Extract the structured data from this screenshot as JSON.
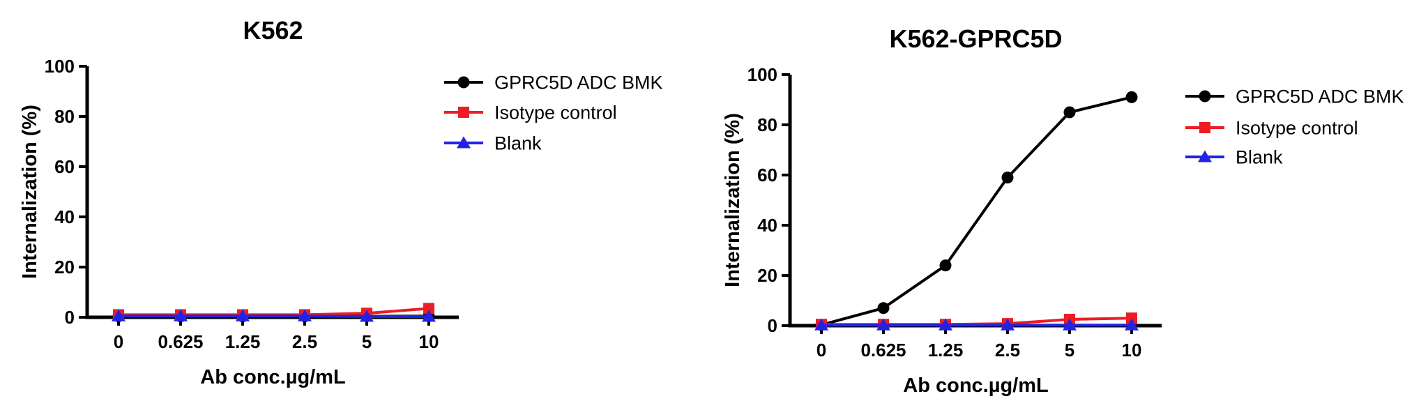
{
  "figure": {
    "background": "#FFFFFF"
  },
  "chart_data": [
    {
      "type": "line",
      "title": "K562",
      "xlabel": "Ab conc.µg/mL",
      "ylabel": "Internalization (%)",
      "categories": [
        "0",
        "0.625",
        "1.25",
        "2.5",
        "5",
        "10"
      ],
      "yticks": [
        "0",
        "20",
        "40",
        "60",
        "80",
        "100"
      ],
      "ylim": [
        0,
        100
      ],
      "grid": false,
      "legend_position": "right",
      "series": [
        {
          "name": "GPRC5D ADC BMK",
          "marker": "circle",
          "color": "#000000",
          "values": [
            0.4,
            0.4,
            0.4,
            0.4,
            0.4,
            0.5
          ]
        },
        {
          "name": "Isotype control",
          "marker": "square",
          "color": "#EC1D24",
          "values": [
            1.0,
            1.0,
            1.0,
            1.0,
            1.6,
            3.5
          ]
        },
        {
          "name": "Blank",
          "marker": "triangle",
          "color": "#2222E6",
          "values": [
            0.5,
            0.5,
            0.5,
            0.5,
            0.3,
            0.3
          ]
        }
      ]
    },
    {
      "type": "line",
      "title": "K562-GPRC5D",
      "xlabel": "Ab conc.µg/mL",
      "ylabel": "Internalization (%)",
      "categories": [
        "0",
        "0.625",
        "1.25",
        "2.5",
        "5",
        "10"
      ],
      "yticks": [
        "0",
        "20",
        "40",
        "60",
        "80",
        "100"
      ],
      "ylim": [
        0,
        100
      ],
      "grid": false,
      "legend_position": "right",
      "series": [
        {
          "name": "GPRC5D ADC BMK",
          "marker": "circle",
          "color": "#000000",
          "values": [
            0.3,
            7,
            24,
            59,
            85,
            91
          ]
        },
        {
          "name": "Isotype control",
          "marker": "square",
          "color": "#EC1D24",
          "values": [
            0.5,
            0.5,
            0.5,
            0.8,
            2.5,
            3.0
          ]
        },
        {
          "name": "Blank",
          "marker": "triangle",
          "color": "#2222E6",
          "values": [
            0.2,
            0.2,
            0.2,
            0.2,
            0.2,
            0.2
          ]
        }
      ]
    }
  ]
}
